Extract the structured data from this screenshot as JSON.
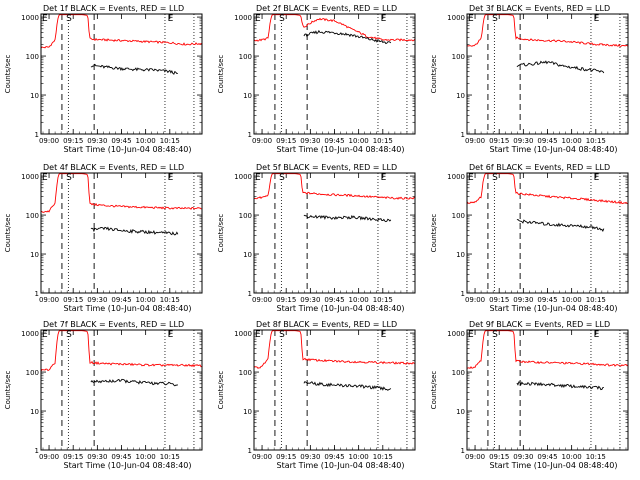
{
  "chart_data": [
    {
      "type": "line",
      "title": "Det 1f BLACK = Events, RED = LLD",
      "xlabel": "Start Time (10-Jun-04 08:48:40)",
      "ylabel": "Counts/sec",
      "x_tick_labels": [
        "09:00",
        "09:15",
        "09:30",
        "09:45",
        "10:00",
        "10:15"
      ],
      "y_tick_labels": [
        "1",
        "10",
        "100",
        "1000"
      ],
      "ylim": [
        1,
        1200
      ],
      "yscale": "log",
      "markers": [
        "E",
        "S",
        "E"
      ],
      "series": [
        {
          "name": "RED = LLD",
          "color": "#ff0000",
          "x": [
            0,
            0.05,
            0.09,
            0.105,
            0.11,
            0.115,
            0.2,
            0.26,
            0.29,
            0.3,
            0.31,
            0.4,
            0.5,
            0.6,
            0.7,
            0.8,
            0.9,
            1.0
          ],
          "values": [
            165,
            170,
            260,
            900,
            1100,
            1150,
            1150,
            1150,
            1100,
            280,
            270,
            260,
            250,
            240,
            230,
            220,
            200,
            210
          ]
        },
        {
          "name": "BLACK = Events",
          "color": "#000000",
          "x": [
            0.31,
            0.4,
            0.5,
            0.6,
            0.7,
            0.8,
            0.85
          ],
          "values": [
            58,
            52,
            48,
            45,
            44,
            40,
            35
          ]
        }
      ]
    },
    {
      "type": "line",
      "title": "Det 2f BLACK = Events, RED = LLD",
      "xlabel": "Start Time (10-Jun-04 08:48:40)",
      "ylabel": "Counts/sec",
      "x_tick_labels": [
        "09:00",
        "09:15",
        "09:30",
        "09:45",
        "10:00",
        "10:15"
      ],
      "y_tick_labels": [
        "1",
        "10",
        "100",
        "1000"
      ],
      "ylim": [
        1,
        1200
      ],
      "yscale": "log",
      "markers": [
        "E",
        "S",
        "E"
      ],
      "series": [
        {
          "name": "RED = LLD",
          "color": "#ff0000",
          "x": [
            0,
            0.05,
            0.09,
            0.105,
            0.11,
            0.115,
            0.2,
            0.26,
            0.29,
            0.3,
            0.31,
            0.35,
            0.4,
            0.5,
            0.6,
            0.7,
            0.8,
            0.9,
            1.0
          ],
          "values": [
            250,
            260,
            290,
            900,
            1100,
            1150,
            1150,
            1150,
            1100,
            650,
            550,
            700,
            900,
            800,
            500,
            320,
            260,
            260,
            260
          ]
        },
        {
          "name": "BLACK = Events",
          "color": "#000000",
          "x": [
            0.31,
            0.4,
            0.5,
            0.6,
            0.7,
            0.8,
            0.85
          ],
          "values": [
            330,
            420,
            400,
            350,
            280,
            230,
            210
          ]
        }
      ]
    },
    {
      "type": "line",
      "title": "Det 3f BLACK = Events, RED = LLD",
      "xlabel": "Start Time (10-Jun-04 08:48:40)",
      "ylabel": "Counts/sec",
      "x_tick_labels": [
        "09:00",
        "09:15",
        "09:30",
        "09:45",
        "10:00",
        "10:15"
      ],
      "y_tick_labels": [
        "1",
        "10",
        "100",
        "1000"
      ],
      "ylim": [
        1,
        1200
      ],
      "yscale": "log",
      "markers": [
        "E",
        "S",
        "E"
      ],
      "series": [
        {
          "name": "RED = LLD",
          "color": "#ff0000",
          "x": [
            0,
            0.05,
            0.09,
            0.105,
            0.11,
            0.115,
            0.2,
            0.26,
            0.29,
            0.3,
            0.31,
            0.4,
            0.5,
            0.6,
            0.7,
            0.8,
            0.9,
            1.0
          ],
          "values": [
            175,
            185,
            280,
            900,
            1100,
            1150,
            1150,
            1150,
            1100,
            300,
            290,
            260,
            250,
            240,
            220,
            200,
            190,
            180
          ]
        },
        {
          "name": "BLACK = Events",
          "color": "#000000",
          "x": [
            0.31,
            0.4,
            0.5,
            0.6,
            0.7,
            0.8,
            0.85
          ],
          "values": [
            58,
            62,
            70,
            55,
            48,
            42,
            38
          ]
        }
      ]
    },
    {
      "type": "line",
      "title": "Det 4f BLACK = Events, RED = LLD",
      "xlabel": "Start Time (10-Jun-04 08:48:40)",
      "ylabel": "Counts/sec",
      "x_tick_labels": [
        "09:00",
        "09:15",
        "09:30",
        "09:45",
        "10:00",
        "10:15"
      ],
      "y_tick_labels": [
        "1",
        "10",
        "100",
        "1000"
      ],
      "ylim": [
        1,
        1200
      ],
      "yscale": "log",
      "markers": [
        "E",
        "S",
        "E"
      ],
      "series": [
        {
          "name": "RED = LLD",
          "color": "#ff0000",
          "x": [
            0,
            0.05,
            0.09,
            0.105,
            0.11,
            0.115,
            0.2,
            0.26,
            0.29,
            0.3,
            0.31,
            0.4,
            0.5,
            0.6,
            0.7,
            0.8,
            0.9,
            1.0
          ],
          "values": [
            120,
            125,
            200,
            900,
            1100,
            1150,
            1150,
            1150,
            1100,
            200,
            190,
            175,
            165,
            160,
            155,
            150,
            148,
            150
          ]
        },
        {
          "name": "BLACK = Events",
          "color": "#000000",
          "x": [
            0.31,
            0.4,
            0.5,
            0.6,
            0.7,
            0.8,
            0.85
          ],
          "values": [
            42,
            45,
            40,
            38,
            36,
            34,
            33
          ]
        }
      ]
    },
    {
      "type": "line",
      "title": "Det 5f BLACK = Events, RED = LLD",
      "xlabel": "Start Time (10-Jun-04 08:48:40)",
      "ylabel": "Counts/sec",
      "x_tick_labels": [
        "09:00",
        "09:15",
        "09:30",
        "09:45",
        "10:00",
        "10:15"
      ],
      "y_tick_labels": [
        "1",
        "10",
        "100",
        "1000"
      ],
      "ylim": [
        1,
        1200
      ],
      "yscale": "log",
      "markers": [
        "E",
        "S",
        "E"
      ],
      "series": [
        {
          "name": "RED = LLD",
          "color": "#ff0000",
          "x": [
            0,
            0.05,
            0.09,
            0.105,
            0.11,
            0.115,
            0.2,
            0.26,
            0.29,
            0.3,
            0.31,
            0.4,
            0.5,
            0.6,
            0.7,
            0.8,
            0.9,
            1.0
          ],
          "values": [
            270,
            280,
            320,
            900,
            1100,
            1150,
            1150,
            1150,
            1100,
            380,
            370,
            350,
            330,
            320,
            300,
            280,
            270,
            270
          ]
        },
        {
          "name": "BLACK = Events",
          "color": "#000000",
          "x": [
            0.31,
            0.4,
            0.5,
            0.6,
            0.7,
            0.8,
            0.85
          ],
          "values": [
            95,
            90,
            85,
            88,
            82,
            75,
            72
          ]
        }
      ]
    },
    {
      "type": "line",
      "title": "Det 6f BLACK = Events, RED = LLD",
      "xlabel": "Start Time (10-Jun-04 08:48:40)",
      "ylabel": "Counts/sec",
      "x_tick_labels": [
        "09:00",
        "09:15",
        "09:30",
        "09:45",
        "10:00",
        "10:15"
      ],
      "y_tick_labels": [
        "1",
        "10",
        "100",
        "1000"
      ],
      "ylim": [
        1,
        1200
      ],
      "yscale": "log",
      "markers": [
        "E",
        "S",
        "E"
      ],
      "series": [
        {
          "name": "RED = LLD",
          "color": "#ff0000",
          "x": [
            0,
            0.05,
            0.09,
            0.105,
            0.11,
            0.115,
            0.2,
            0.26,
            0.29,
            0.3,
            0.31,
            0.4,
            0.5,
            0.6,
            0.7,
            0.8,
            0.9,
            1.0
          ],
          "values": [
            210,
            215,
            300,
            900,
            1100,
            1150,
            1150,
            1150,
            1100,
            380,
            360,
            330,
            300,
            280,
            260,
            240,
            220,
            200
          ]
        },
        {
          "name": "BLACK = Events",
          "color": "#000000",
          "x": [
            0.31,
            0.4,
            0.5,
            0.6,
            0.7,
            0.8,
            0.85
          ],
          "values": [
            72,
            65,
            58,
            55,
            52,
            48,
            42
          ]
        }
      ]
    },
    {
      "type": "line",
      "title": "Det 7f BLACK = Events, RED = LLD",
      "xlabel": "Start Time (10-Jun-04 08:48:40)",
      "ylabel": "Counts/sec",
      "x_tick_labels": [
        "09:00",
        "09:15",
        "09:30",
        "09:45",
        "10:00",
        "10:15"
      ],
      "y_tick_labels": [
        "1",
        "10",
        "100",
        "1000"
      ],
      "ylim": [
        1,
        1200
      ],
      "yscale": "log",
      "markers": [
        "E",
        "S",
        "E"
      ],
      "series": [
        {
          "name": "RED = LLD",
          "color": "#ff0000",
          "x": [
            0,
            0.05,
            0.09,
            0.105,
            0.11,
            0.115,
            0.2,
            0.26,
            0.29,
            0.3,
            0.31,
            0.4,
            0.5,
            0.6,
            0.7,
            0.8,
            0.9,
            1.0
          ],
          "values": [
            110,
            115,
            180,
            900,
            1100,
            1150,
            1150,
            1150,
            1100,
            180,
            175,
            165,
            160,
            155,
            150,
            150,
            150,
            145
          ]
        },
        {
          "name": "BLACK = Events",
          "color": "#000000",
          "x": [
            0.31,
            0.4,
            0.5,
            0.6,
            0.7,
            0.8,
            0.85
          ],
          "values": [
            55,
            58,
            60,
            55,
            52,
            50,
            45
          ]
        }
      ]
    },
    {
      "type": "line",
      "title": "Det 8f BLACK = Events, RED = LLD",
      "xlabel": "Start Time (10-Jun-04 08:48:40)",
      "ylabel": "Counts/sec",
      "x_tick_labels": [
        "09:00",
        "09:15",
        "09:30",
        "09:45",
        "10:00",
        "10:15"
      ],
      "y_tick_labels": [
        "1",
        "10",
        "100",
        "1000"
      ],
      "ylim": [
        1,
        1200
      ],
      "yscale": "log",
      "markers": [
        "E",
        "S",
        "E"
      ],
      "series": [
        {
          "name": "RED = LLD",
          "color": "#ff0000",
          "x": [
            0,
            0.05,
            0.09,
            0.105,
            0.11,
            0.115,
            0.2,
            0.26,
            0.29,
            0.3,
            0.31,
            0.4,
            0.5,
            0.6,
            0.7,
            0.8,
            0.9,
            1.0
          ],
          "values": [
            130,
            135,
            230,
            900,
            1100,
            1150,
            1150,
            1150,
            1100,
            220,
            215,
            200,
            190,
            185,
            180,
            175,
            170,
            168
          ]
        },
        {
          "name": "BLACK = Events",
          "color": "#000000",
          "x": [
            0.31,
            0.4,
            0.5,
            0.6,
            0.7,
            0.8,
            0.85
          ],
          "values": [
            55,
            50,
            46,
            45,
            42,
            38,
            35
          ]
        }
      ]
    },
    {
      "type": "line",
      "title": "Det 9f BLACK = Events, RED = LLD",
      "xlabel": "Start Time (10-Jun-04 08:48:40)",
      "ylabel": "Counts/sec",
      "x_tick_labels": [
        "09:00",
        "09:15",
        "09:30",
        "09:45",
        "10:00",
        "10:15"
      ],
      "y_tick_labels": [
        "1",
        "10",
        "100",
        "1000"
      ],
      "ylim": [
        1,
        1200
      ],
      "yscale": "log",
      "markers": [
        "E",
        "S",
        "E"
      ],
      "series": [
        {
          "name": "RED = LLD",
          "color": "#ff0000",
          "x": [
            0,
            0.05,
            0.09,
            0.105,
            0.11,
            0.115,
            0.2,
            0.26,
            0.29,
            0.3,
            0.31,
            0.4,
            0.5,
            0.6,
            0.7,
            0.8,
            0.9,
            1.0
          ],
          "values": [
            130,
            135,
            210,
            900,
            1100,
            1150,
            1150,
            1150,
            1100,
            200,
            190,
            180,
            175,
            170,
            165,
            160,
            150,
            155
          ]
        },
        {
          "name": "BLACK = Events",
          "color": "#000000",
          "x": [
            0.31,
            0.4,
            0.5,
            0.6,
            0.7,
            0.8,
            0.85
          ],
          "values": [
            52,
            50,
            48,
            45,
            42,
            40,
            38
          ]
        }
      ]
    }
  ]
}
